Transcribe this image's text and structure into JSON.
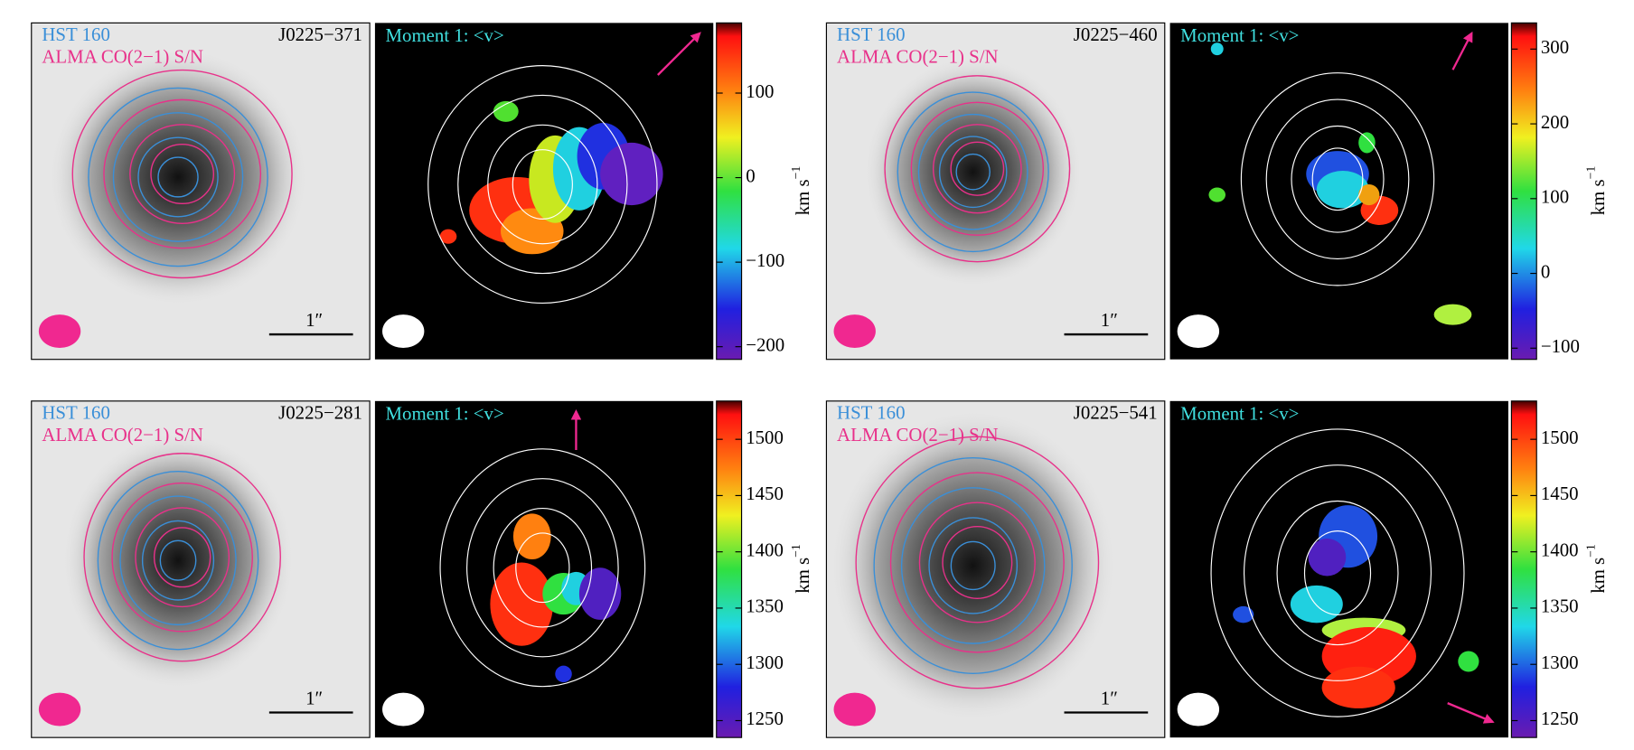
{
  "panels": [
    {
      "left": {
        "band_label": "HST 160",
        "contour_label": "ALMA CO(2−1) S/N",
        "id": "J0225−371",
        "scale_label": "1″"
      },
      "right": {
        "title": "Moment 1: <v>"
      },
      "colorbar": {
        "unit": "km s",
        "exponent": "−1",
        "lim": [
          -215,
          183
        ],
        "ticks": [
          100,
          0,
          {
            "value": -100,
            "label": "−100"
          },
          {
            "value": -200,
            "label": "−200"
          }
        ]
      }
    },
    {
      "left": {
        "band_label": "HST 160",
        "contour_label": "ALMA CO(2−1) S/N",
        "id": "J0225−460",
        "scale_label": "1″"
      },
      "right": {
        "title": "Moment 1: <v>"
      },
      "colorbar": {
        "unit": "km s",
        "exponent": "−1",
        "lim": [
          -115,
          335
        ],
        "ticks": [
          300,
          200,
          100,
          0,
          {
            "value": -100,
            "label": "−100"
          }
        ]
      }
    },
    {
      "left": {
        "band_label": "HST 160",
        "contour_label": "ALMA CO(2−1) S/N",
        "id": "J0225−281",
        "scale_label": "1″"
      },
      "right": {
        "title": "Moment 1: <v>"
      },
      "colorbar": {
        "unit": "km s",
        "exponent": "−1",
        "lim": [
          1235,
          1534
        ],
        "ticks": [
          1500,
          1450,
          1400,
          1350,
          1300,
          1250
        ]
      }
    },
    {
      "left": {
        "band_label": "HST 160",
        "contour_label": "ALMA CO(2−1) S/N",
        "id": "J0225−541",
        "scale_label": "1″"
      },
      "right": {
        "title": "Moment 1: <v>"
      },
      "colorbar": {
        "unit": "km s",
        "exponent": "−1",
        "lim": [
          1235,
          1534
        ],
        "ticks": [
          1500,
          1450,
          1400,
          1350,
          1300,
          1250
        ]
      }
    }
  ]
}
